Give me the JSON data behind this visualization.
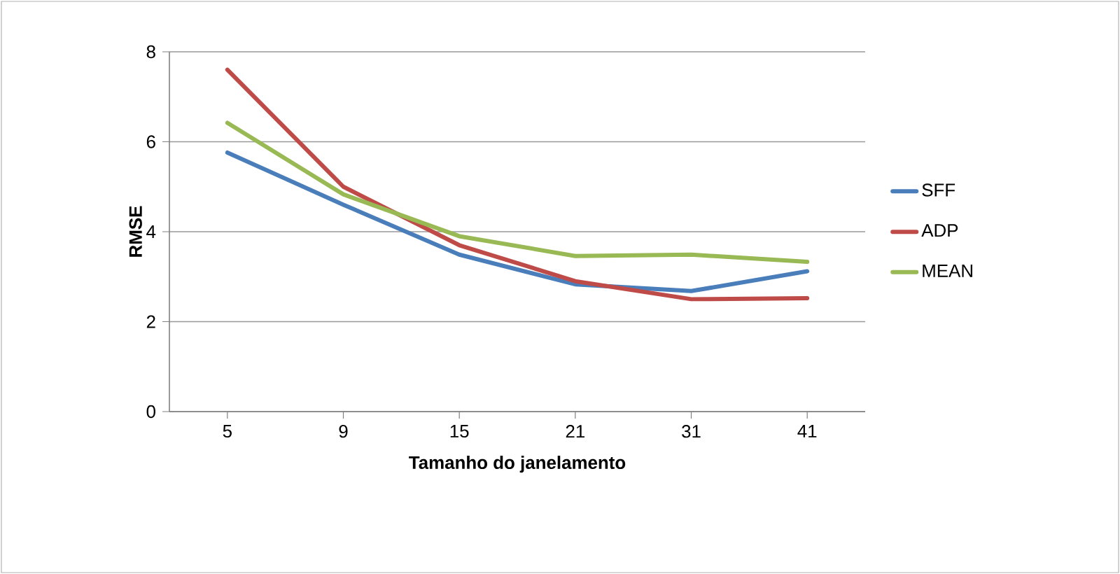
{
  "chart_data": {
    "type": "line",
    "xlabel": "Tamanho do janelamento",
    "ylabel": "RMSE",
    "categories": [
      "5",
      "9",
      "15",
      "21",
      "31",
      "41"
    ],
    "series": [
      {
        "name": "SFF",
        "color": "#4a7ebb",
        "values": [
          5.76,
          4.6,
          3.49,
          2.83,
          2.68,
          3.12
        ]
      },
      {
        "name": "ADP",
        "color": "#be4b48",
        "values": [
          7.6,
          5.0,
          3.7,
          2.9,
          2.5,
          2.52
        ]
      },
      {
        "name": "MEAN",
        "color": "#98b954",
        "values": [
          6.42,
          4.83,
          3.9,
          3.46,
          3.49,
          3.33
        ]
      }
    ],
    "ylim": [
      0,
      8
    ],
    "yticks": [
      0,
      2,
      4,
      6,
      8
    ],
    "grid": "y",
    "legend": "right",
    "marker": "none",
    "line_style": "solid"
  }
}
